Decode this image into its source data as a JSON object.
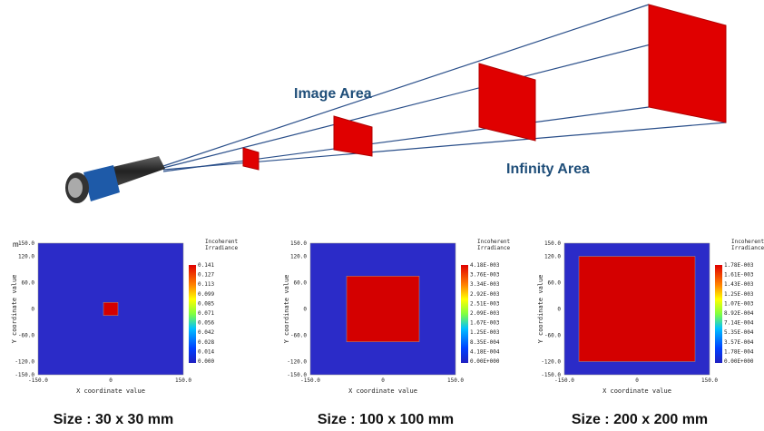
{
  "diagram": {
    "image_area_label": "Image Area",
    "infinity_area_label": "Infinity Area",
    "fragment": "m"
  },
  "panels": [
    {
      "legend_title": [
        "Incoherent",
        "Irradiance"
      ],
      "y_axis_label": "Y coordinate value",
      "x_axis_label": "X coordinate value",
      "y_ticks": [
        "150.0",
        "120.0",
        "60.0",
        "0",
        "-60.0",
        "-120.0",
        "-150.0"
      ],
      "x_ticks": [
        "-150.0",
        "0",
        "150.0"
      ],
      "colorbar_ticks": [
        "0.141",
        "0.127",
        "0.113",
        "0.099",
        "0.085",
        "0.071",
        "0.056",
        "0.042",
        "0.028",
        "0.014",
        "0.000"
      ],
      "caption": "Size : 30 x 30 mm"
    },
    {
      "legend_title": [
        "Incoherent",
        "Irradiance"
      ],
      "y_axis_label": "Y coordinate value",
      "x_axis_label": "X coordinate value",
      "y_ticks": [
        "150.0",
        "120.0",
        "60.0",
        "0",
        "-60.0",
        "-120.0",
        "-150.0"
      ],
      "x_ticks": [
        "-150.0",
        "0",
        "150.0"
      ],
      "colorbar_ticks": [
        "4.18E-003",
        "3.76E-003",
        "3.34E-003",
        "2.92E-003",
        "2.51E-003",
        "2.09E-003",
        "1.67E-003",
        "1.25E-003",
        "8.35E-004",
        "4.18E-004",
        "0.00E+000"
      ],
      "caption": "Size : 100 x 100 mm"
    },
    {
      "legend_title": [
        "Incoherent",
        "Irradiance"
      ],
      "y_axis_label": "Y coordinate value",
      "x_axis_label": "X coordinate value",
      "y_ticks": [
        "150.0",
        "120.0",
        "60.0",
        "0",
        "-60.0",
        "-120.0",
        "-150.0"
      ],
      "x_ticks": [
        "-150.0",
        "0",
        "150.0"
      ],
      "colorbar_ticks": [
        "1.78E-003",
        "1.61E-003",
        "1.43E-003",
        "1.25E-003",
        "1.07E-003",
        "8.92E-004",
        "7.14E-004",
        "5.35E-004",
        "3.57E-004",
        "1.78E-004",
        "0.00E+000"
      ],
      "caption": "Size : 200 x 200 mm"
    }
  ]
}
